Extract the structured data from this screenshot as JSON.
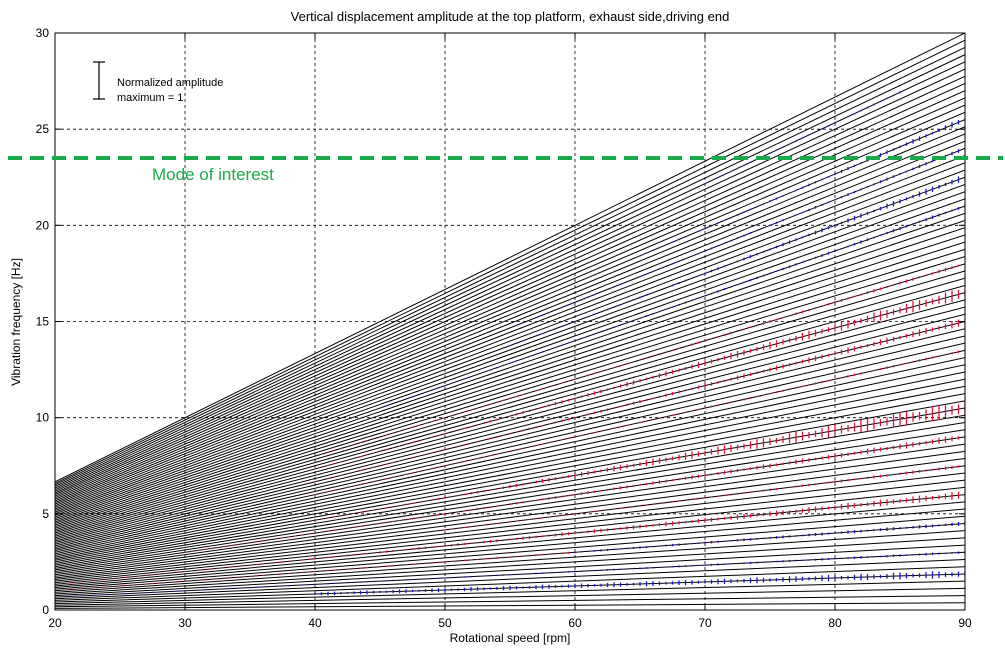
{
  "chart_data": {
    "type": "line",
    "title": "Vertical displacement amplitude at the top platform, exhaust side,driving end",
    "xlabel": "Rotational speed [rpm]",
    "ylabel": "Vibration frequency [Hz]",
    "xlim": [
      20,
      90
    ],
    "ylim": [
      0,
      30
    ],
    "xticks": [
      20,
      30,
      40,
      50,
      60,
      70,
      80,
      90
    ],
    "yticks": [
      0,
      5,
      10,
      15,
      20,
      25,
      30
    ],
    "grid": true,
    "line_color": "#000000",
    "order_multiples": [
      0.25,
      0.5,
      0.75,
      1,
      1.25,
      1.5,
      1.75,
      2,
      2.25,
      2.5,
      2.75,
      3,
      3.25,
      3.5,
      3.75,
      4,
      4.25,
      4.5,
      4.75,
      5,
      5.25,
      5.5,
      5.75,
      6,
      6.25,
      6.5,
      6.75,
      7,
      7.25,
      7.5,
      7.75,
      8,
      8.25,
      8.5,
      8.75,
      9,
      9.25,
      9.5,
      9.75,
      10,
      10.25,
      10.5,
      10.75,
      11,
      11.25,
      11.5,
      11.75,
      12,
      12.25,
      12.5,
      12.75,
      13,
      13.25,
      13.5,
      13.75,
      14,
      14.25,
      14.5,
      14.75,
      15,
      15.25,
      15.5,
      15.75,
      16,
      16.25,
      16.5,
      16.75,
      17,
      17.25,
      17.5,
      17.75,
      18,
      18.25,
      18.5,
      18.75,
      19,
      19.25,
      19.5,
      19.75,
      20
    ],
    "amplitude_color_high": "#e8103a",
    "amplitude_color_low": "#1a1acc",
    "amplitude_traces": [
      {
        "order": 1.25,
        "x_start": 40,
        "x_end": 90,
        "amp_start": 0.2,
        "amp_end": 0.4,
        "color": "low"
      },
      {
        "order": 2,
        "x_start": 20,
        "x_end": 90,
        "amp_start": 0.05,
        "amp_end": 0.15,
        "color": "low"
      },
      {
        "order": 3,
        "x_start": 20,
        "x_end": 90,
        "amp_start": 0.05,
        "amp_end": 0.2,
        "color": "high"
      },
      {
        "order": 3,
        "x_start": 60,
        "x_end": 90,
        "amp_start": 0.1,
        "amp_end": 0.2,
        "color": "low"
      },
      {
        "order": 4,
        "x_start": 20,
        "x_end": 90,
        "amp_start": 0.05,
        "amp_end": 0.4,
        "color": "high"
      },
      {
        "order": 5,
        "x_start": 50,
        "x_end": 90,
        "amp_start": 0.05,
        "amp_end": 0.2,
        "color": "high"
      },
      {
        "order": 6,
        "x_start": 30,
        "x_end": 90,
        "amp_start": 0.05,
        "amp_end": 0.35,
        "color": "high"
      },
      {
        "order": 7,
        "x_start": 40,
        "x_end": 90,
        "amp_start": 0.05,
        "amp_end": 0.9,
        "color": "high"
      },
      {
        "order": 9,
        "x_start": 40,
        "x_end": 90,
        "amp_start": 0.05,
        "amp_end": 0.15,
        "color": "high"
      },
      {
        "order": 10,
        "x_start": 40,
        "x_end": 90,
        "amp_start": 0.05,
        "amp_end": 0.4,
        "color": "high"
      },
      {
        "order": 11,
        "x_start": 40,
        "x_end": 90,
        "amp_start": 0.05,
        "amp_end": 0.65,
        "color": "high"
      },
      {
        "order": 12,
        "x_start": 40,
        "x_end": 90,
        "amp_start": 0.05,
        "amp_end": 0.2,
        "color": "high"
      },
      {
        "order": 14,
        "x_start": 45,
        "x_end": 90,
        "amp_start": 0.05,
        "amp_end": 0.2,
        "color": "low"
      },
      {
        "order": 15,
        "x_start": 55,
        "x_end": 90,
        "amp_start": 0.05,
        "amp_end": 0.35,
        "color": "low"
      },
      {
        "order": 16,
        "x_start": 55,
        "x_end": 90,
        "amp_start": 0.05,
        "amp_end": 0.2,
        "color": "low"
      },
      {
        "order": 17,
        "x_start": 65,
        "x_end": 90,
        "amp_start": 0.05,
        "amp_end": 0.3,
        "color": "low"
      },
      {
        "order": 19,
        "x_start": 70,
        "x_end": 85,
        "amp_start": 0.05,
        "amp_end": 0.12,
        "color": "low"
      }
    ],
    "annotations": [
      {
        "text": "Mode of interest",
        "y": 23.5,
        "style": "dashed",
        "color": "#1aaa4a"
      }
    ],
    "legend": {
      "lines": [
        "Normalized amplitude",
        "maximum = 1"
      ],
      "placement": "top-left"
    }
  }
}
